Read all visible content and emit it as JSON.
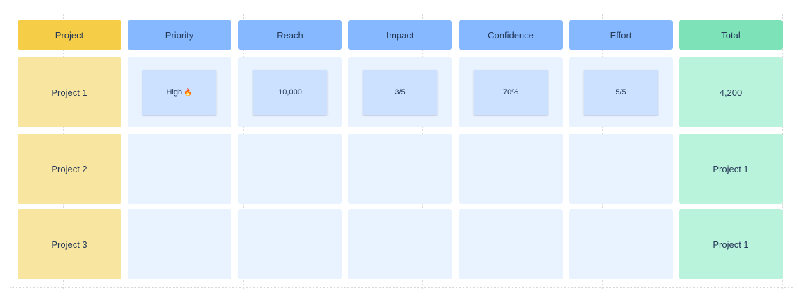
{
  "headers": [
    "Project",
    "Priority",
    "Reach",
    "Impact",
    "Confidence",
    "Effort",
    "Total"
  ],
  "rows": [
    {
      "project": "Project 1",
      "priority": "High",
      "priority_icon": "fire-icon",
      "reach": "10,000",
      "impact": "3/5",
      "confidence": "70%",
      "effort": "5/5",
      "total": "4,200"
    },
    {
      "project": "Project 2",
      "total": "Project 1"
    },
    {
      "project": "Project 3",
      "total": "Project 1"
    }
  ],
  "colors": {
    "project": "#f5cd47",
    "metric": "#85b8ff",
    "total": "#7ee2b8",
    "note": "#cce0ff"
  }
}
